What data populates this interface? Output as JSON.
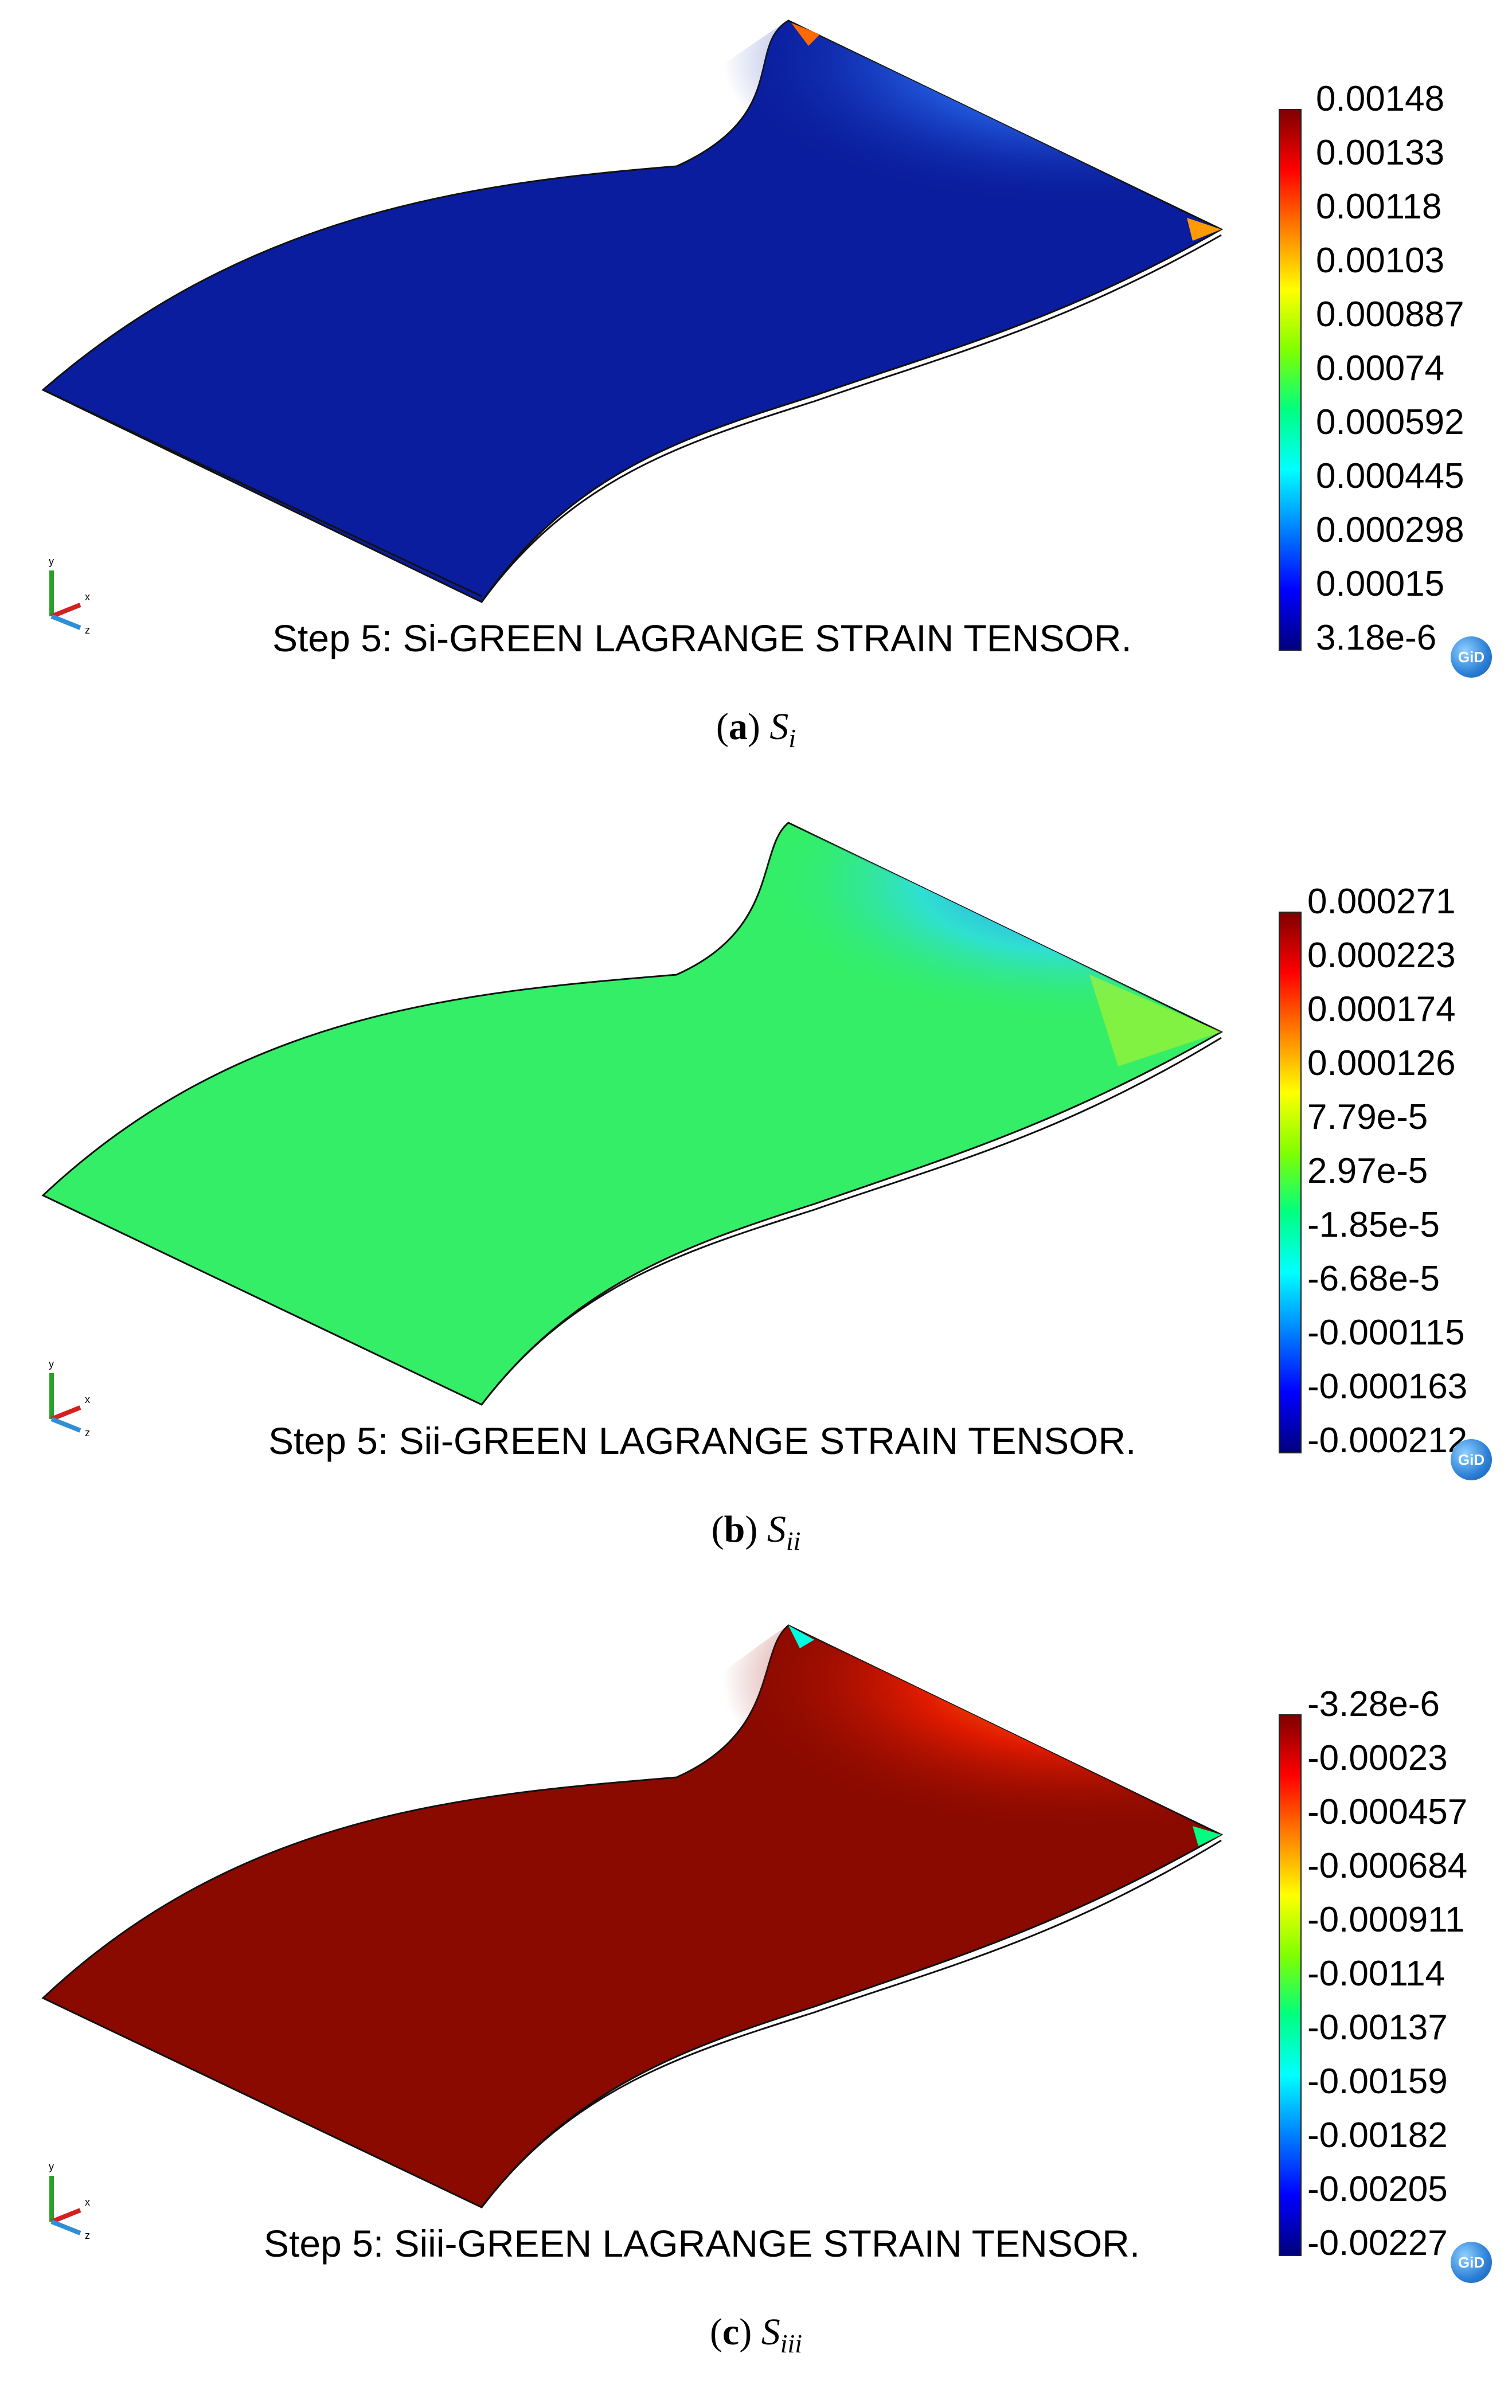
{
  "figures": [
    {
      "id": "a",
      "step_title": "Step 5: Si-GREEN LAGRANGE STRAIN TENSOR.",
      "colorbar_labels": [
        "0.00148",
        "0.00133",
        "0.00118",
        "0.00103",
        "0.000887",
        "0.00074",
        "0.000592",
        "0.000445",
        "0.000298",
        "0.00015",
        "3.18e-6"
      ],
      "caption_letter": "a",
      "caption_symbol": "S",
      "caption_subscript": "i",
      "badge": "GiD"
    },
    {
      "id": "b",
      "step_title": "Step 5: Sii-GREEN LAGRANGE STRAIN TENSOR.",
      "colorbar_labels": [
        "0.000271",
        "0.000223",
        "0.000174",
        "0.000126",
        "7.79e-5",
        "2.97e-5",
        "-1.85e-5",
        "-6.68e-5",
        "-0.000115",
        "-0.000163",
        "-0.000212"
      ],
      "caption_letter": "b",
      "caption_symbol": "S",
      "caption_subscript": "ii",
      "badge": "GiD"
    },
    {
      "id": "c",
      "step_title": "Step 5: Siii-GREEN LAGRANGE STRAIN TENSOR.",
      "colorbar_labels": [
        "-3.28e-6",
        "-0.00023",
        "-0.000457",
        "-0.000684",
        "-0.000911",
        "-0.00114",
        "-0.00137",
        "-0.00159",
        "-0.00182",
        "-0.00205",
        "-0.00227"
      ],
      "caption_letter": "c",
      "caption_symbol": "S",
      "caption_subscript": "iii",
      "badge": "GiD"
    }
  ],
  "axis_labels": {
    "y": "y",
    "x": "x",
    "z": "z"
  },
  "colors": {
    "scale": [
      "#00007f",
      "#0000ff",
      "#0080ff",
      "#00ffff",
      "#00ff80",
      "#80ff00",
      "#ffff00",
      "#ff8000",
      "#ff0000",
      "#7f0000"
    ],
    "panel_a_dominant": "#0a1d9e",
    "panel_b_dominant": "#33ee66",
    "panel_c_dominant": "#8a0a00"
  }
}
